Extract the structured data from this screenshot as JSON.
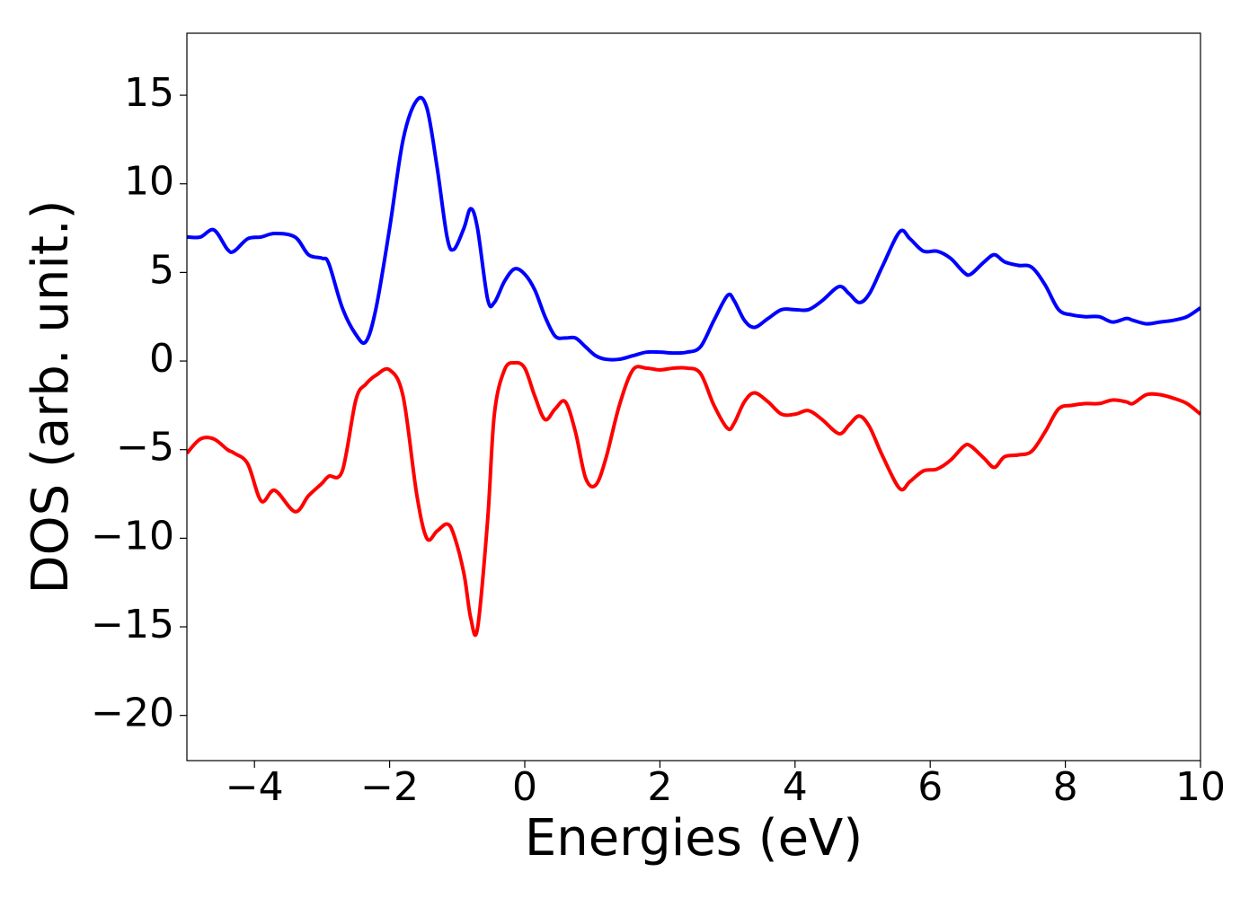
{
  "chart_data": {
    "type": "line",
    "x_label": "Energies (eV)",
    "y_label": "DOS (arb. unit.)",
    "x": [
      -5,
      -4.8,
      -4.6,
      -4.4,
      -4.3,
      -4.1,
      -3.9,
      -3.7,
      -3.4,
      -3.2,
      -3.0,
      -2.9,
      -2.7,
      -2.5,
      -2.35,
      -2.2,
      -2.0,
      -1.8,
      -1.6,
      -1.45,
      -1.3,
      -1.15,
      -1.05,
      -0.9,
      -0.8,
      -0.7,
      -0.55,
      -0.45,
      -0.3,
      -0.15,
      0,
      0.15,
      0.3,
      0.45,
      0.6,
      0.75,
      0.9,
      1.05,
      1.2,
      1.4,
      1.6,
      1.8,
      2.0,
      2.2,
      2.4,
      2.6,
      2.8,
      3.0,
      3.1,
      3.25,
      3.4,
      3.6,
      3.8,
      4.0,
      4.2,
      4.4,
      4.65,
      4.8,
      4.95,
      5.1,
      5.3,
      5.55,
      5.7,
      5.9,
      6.1,
      6.3,
      6.5,
      6.6,
      6.8,
      6.95,
      7.1,
      7.3,
      7.5,
      7.7,
      7.9,
      8.1,
      8.3,
      8.5,
      8.7,
      8.9,
      9.0,
      9.2,
      9.4,
      9.6,
      9.8,
      10
    ],
    "series": [
      {
        "color": "#0000ff",
        "values": [
          7.0,
          7.0,
          7.4,
          6.3,
          6.2,
          6.9,
          7.0,
          7.2,
          7.0,
          6.0,
          5.8,
          5.5,
          3.0,
          1.5,
          1.1,
          3.0,
          7.5,
          12.5,
          14.7,
          14.3,
          11.0,
          7.0,
          6.3,
          7.5,
          8.6,
          7.5,
          3.5,
          3.3,
          4.5,
          5.2,
          4.9,
          4.0,
          2.5,
          1.4,
          1.3,
          1.3,
          0.8,
          0.3,
          0.1,
          0.1,
          0.3,
          0.5,
          0.5,
          0.45,
          0.5,
          0.8,
          2.3,
          3.7,
          3.4,
          2.3,
          1.9,
          2.4,
          2.9,
          2.9,
          2.9,
          3.4,
          4.2,
          3.8,
          3.3,
          3.8,
          5.4,
          7.3,
          6.9,
          6.2,
          6.2,
          5.8,
          5.0,
          4.9,
          5.6,
          6.0,
          5.6,
          5.4,
          5.3,
          4.3,
          2.9,
          2.6,
          2.5,
          2.5,
          2.2,
          2.4,
          2.3,
          2.1,
          2.2,
          2.3,
          2.5,
          3.0
        ]
      },
      {
        "color": "#ff0000",
        "values": [
          -5.2,
          -4.4,
          -4.4,
          -5.0,
          -5.2,
          -5.8,
          -7.9,
          -7.3,
          -8.5,
          -7.6,
          -6.9,
          -6.5,
          -6.2,
          -2.2,
          -1.3,
          -0.8,
          -0.5,
          -2.0,
          -7.5,
          -10.0,
          -9.6,
          -9.2,
          -9.8,
          -12.0,
          -14.5,
          -15.1,
          -9.0,
          -3.0,
          -0.5,
          -0.1,
          -0.4,
          -2.0,
          -3.3,
          -2.7,
          -2.3,
          -4.0,
          -6.6,
          -7.0,
          -5.5,
          -2.5,
          -0.5,
          -0.4,
          -0.5,
          -0.4,
          -0.4,
          -0.7,
          -2.5,
          -3.8,
          -3.5,
          -2.3,
          -1.8,
          -2.3,
          -3.0,
          -3.0,
          -2.8,
          -3.3,
          -4.1,
          -3.6,
          -3.1,
          -3.7,
          -5.4,
          -7.2,
          -6.8,
          -6.2,
          -6.1,
          -5.6,
          -4.8,
          -4.8,
          -5.5,
          -6.0,
          -5.4,
          -5.3,
          -5.1,
          -4.0,
          -2.7,
          -2.5,
          -2.4,
          -2.4,
          -2.2,
          -2.3,
          -2.4,
          -1.9,
          -1.9,
          -2.1,
          -2.4,
          -3.0
        ]
      }
    ],
    "xlim": [
      -5,
      10
    ],
    "xticks": [
      {
        "value": -4,
        "label": "−4"
      },
      {
        "value": -2,
        "label": "−2"
      },
      0,
      2,
      4,
      6,
      8,
      10
    ],
    "ylim": [
      -22.55,
      18.5
    ],
    "yticks": [
      {
        "value": -20,
        "label": "−20"
      },
      {
        "value": -15,
        "label": "−15"
      },
      {
        "value": -10,
        "label": "−10"
      },
      {
        "value": -5,
        "label": "−5"
      },
      0,
      5,
      10,
      15
    ],
    "grid": false
  }
}
